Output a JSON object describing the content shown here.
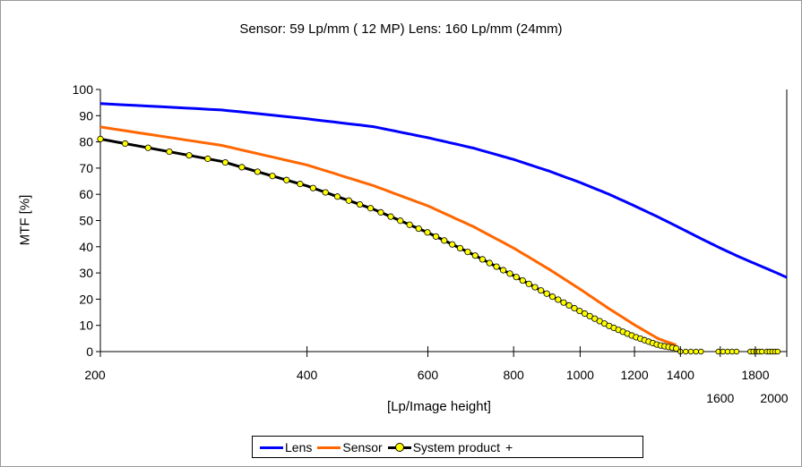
{
  "chart_data": {
    "type": "line",
    "title": "Sensor: 59 Lp/mm  ( 12 MP)  Lens:  160 Lp/mm (24mm)",
    "xlabel": "[Lp/Image height]",
    "ylabel": "MTF [%]",
    "xlim": [
      200,
      2000
    ],
    "ylim": [
      0,
      100
    ],
    "x_scale": "log",
    "grid": false,
    "legend_position": "bottom",
    "x_ticks": [
      200,
      400,
      600,
      800,
      1000,
      1200,
      1400,
      1600,
      1800,
      2000
    ],
    "y_ticks": [
      0,
      10,
      20,
      30,
      40,
      50,
      60,
      70,
      80,
      90,
      100
    ],
    "series": [
      {
        "name": "Lens",
        "color": "#0000ff",
        "x": [
          200,
          300,
          400,
          500,
          600,
          700,
          800,
          900,
          1000,
          1100,
          1200,
          1300,
          1400,
          1500,
          1600,
          1700,
          1800,
          1900,
          2000
        ],
        "y": [
          94.6,
          92.2,
          88.8,
          85.8,
          81.6,
          77.6,
          73.3,
          68.9,
          64.5,
          60.1,
          55.6,
          51.3,
          47.1,
          43.1,
          39.5,
          36.3,
          33.5,
          30.9,
          28.3
        ]
      },
      {
        "name": "Sensor",
        "color": "#ff6600",
        "x": [
          200,
          300,
          400,
          500,
          600,
          700,
          800,
          900,
          1000,
          1100,
          1200,
          1300,
          1380
        ],
        "y": [
          85.7,
          78.7,
          71.2,
          63.3,
          55.6,
          47.6,
          39.5,
          31.5,
          23.8,
          16.5,
          10.2,
          4.9,
          2.5
        ]
      },
      {
        "name": "System product",
        "color": "#000000",
        "marker_color": "#ffff00",
        "x": [
          200,
          300,
          400,
          500,
          600,
          700,
          800,
          900,
          1000,
          1100,
          1200,
          1300,
          1380
        ],
        "y": [
          81.1,
          72.6,
          63.2,
          54.3,
          45.4,
          36.9,
          29.0,
          21.7,
          15.4,
          9.9,
          5.7,
          2.5,
          1.2
        ]
      },
      {
        "name": "+",
        "color": "#000000",
        "x": [
          1400,
          1500,
          1600,
          1700,
          1800,
          1900,
          2000
        ],
        "y": [
          0,
          0,
          0,
          0,
          0,
          0,
          0
        ]
      }
    ]
  }
}
